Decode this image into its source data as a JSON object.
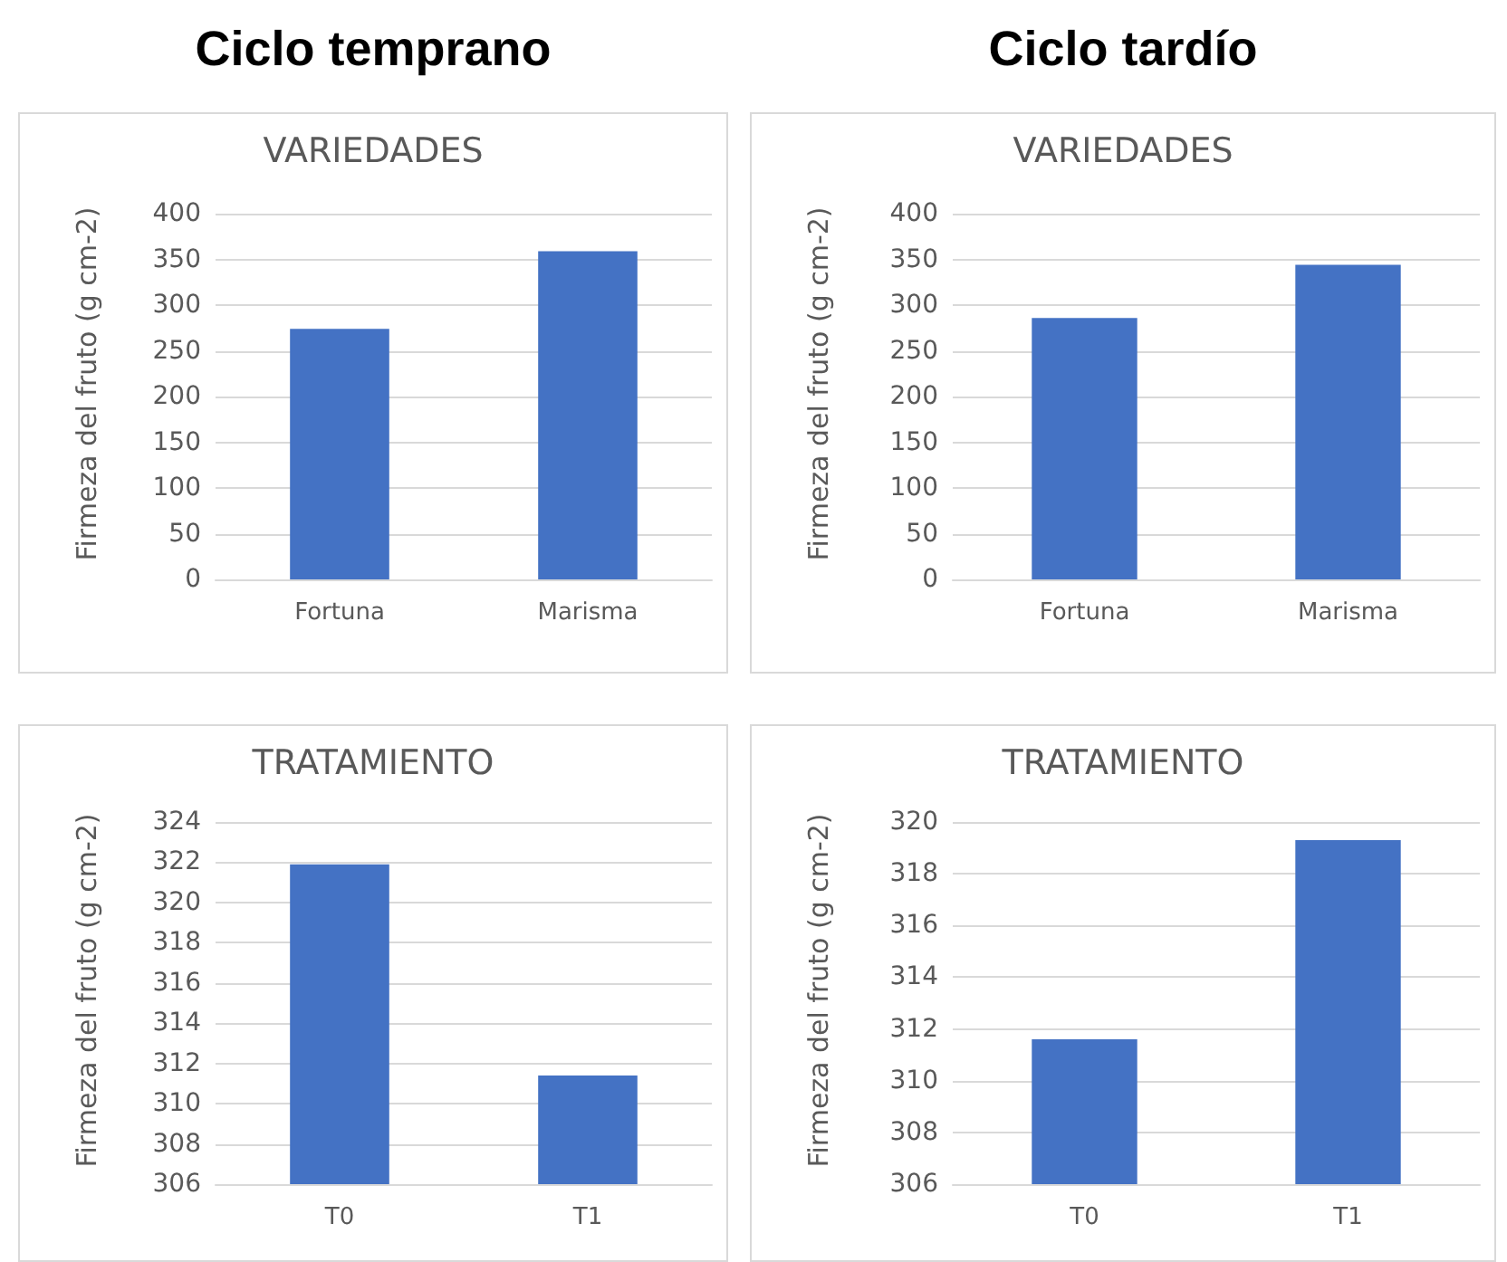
{
  "chart_data": [
    {
      "type": "bar",
      "title": "VARIEDADES",
      "annotations": [
        "Ciclo temprano"
      ],
      "ylabel": "Firmeza del fruto (g cm-2)",
      "categories": [
        "Fortuna",
        "Marisma"
      ],
      "values": [
        274,
        359
      ],
      "color": "#4472c4",
      "ylim": [
        0,
        400
      ],
      "yticks": [
        0,
        50,
        100,
        150,
        200,
        250,
        300,
        350,
        400
      ],
      "grid": "y"
    },
    {
      "type": "bar",
      "title": "VARIEDADES",
      "annotations": [
        "Ciclo tardío"
      ],
      "ylabel": "Firmeza del fruto (g cm-2)",
      "categories": [
        "Fortuna",
        "Marisma"
      ],
      "values": [
        286,
        344
      ],
      "color": "#4472c4",
      "ylim": [
        0,
        400
      ],
      "yticks": [
        0,
        50,
        100,
        150,
        200,
        250,
        300,
        350,
        400
      ],
      "grid": "y"
    },
    {
      "type": "bar",
      "title": "TRATAMIENTO",
      "ylabel": "Firmeza del fruto (g cm-2)",
      "categories": [
        "T0",
        "T1"
      ],
      "values": [
        321.9,
        311.4
      ],
      "color": "#4472c4",
      "ylim": [
        306,
        324
      ],
      "yticks": [
        306,
        308,
        310,
        312,
        314,
        316,
        318,
        320,
        322,
        324
      ],
      "grid": "y"
    },
    {
      "type": "bar",
      "title": "TRATAMIENTO",
      "ylabel": "Firmeza del fruto (g cm-2)",
      "categories": [
        "T0",
        "T1"
      ],
      "values": [
        311.6,
        319.3
      ],
      "color": "#4472c4",
      "ylim": [
        306,
        320
      ],
      "yticks": [
        306,
        308,
        310,
        312,
        314,
        316,
        318,
        320
      ],
      "grid": "y"
    }
  ]
}
